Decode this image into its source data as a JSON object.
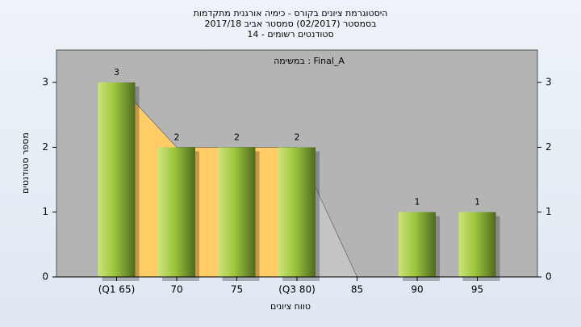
{
  "chart_data": {
    "type": "bar",
    "title": [
      "היסטוגרמת ציונים בקורס - כימיה אורגנית מתקדמות",
      "בסמסטר (02/2017)  סמסטר אביב 2017/18",
      "סטודנטים רשומים - 14"
    ],
    "annotation": "Final_A : במשימה",
    "xlabel": "טווח ציונים",
    "ylabel": "מספר סטודנטים",
    "categories": [
      "(Q1 65)",
      "70",
      "75",
      "(Q3 80)",
      "85",
      "90",
      "95"
    ],
    "values": [
      3,
      2,
      2,
      2,
      0,
      1,
      1
    ],
    "color": "#9cc43c",
    "area_color": "#ffcc66",
    "tail_color": "#c4c4c4",
    "ylim": [
      0,
      3.5
    ],
    "yticks": [
      0,
      1,
      2,
      3
    ],
    "y2ticks": [
      0,
      1,
      2,
      3
    ]
  }
}
